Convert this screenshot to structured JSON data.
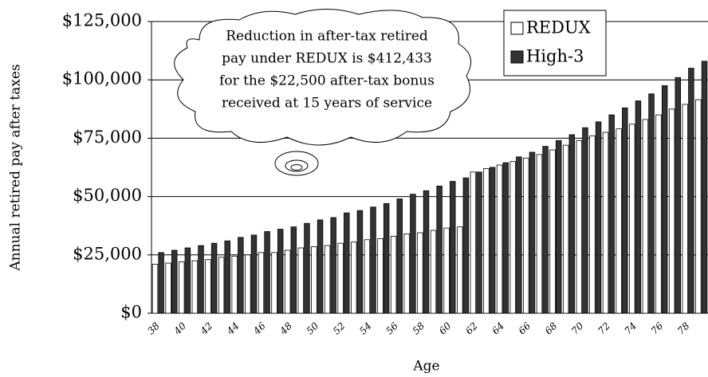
{
  "chart_data": {
    "type": "bar",
    "y_label": "Annual retired pay after taxes",
    "x_label": "Age",
    "annotation": [
      "Reduction in after-tax retired",
      "pay under REDUX is $412,433",
      "for the $22,500 after-tax bonus",
      "received at 15 years of service"
    ],
    "categories": [
      "38",
      null,
      "40",
      null,
      "42",
      null,
      "44",
      null,
      "46",
      null,
      "48",
      null,
      "50",
      null,
      "52",
      null,
      "54",
      null,
      "56",
      null,
      "58",
      null,
      "60",
      null,
      "62",
      null,
      "64",
      null,
      "66",
      null,
      "68",
      null,
      "70",
      null,
      "72",
      null,
      "74",
      null,
      "76",
      null,
      "78",
      null
    ],
    "series": [
      {
        "name": "REDUX",
        "color": "#ffffff",
        "values": [
          21000,
          21500,
          22000,
          22500,
          23000,
          24000,
          24500,
          25000,
          26000,
          26000,
          27000,
          28000,
          28500,
          29000,
          30000,
          30500,
          31500,
          32000,
          33000,
          34000,
          34500,
          35500,
          36500,
          37000,
          60500,
          62000,
          63500,
          65000,
          66500,
          68000,
          70000,
          72000,
          74000,
          76000,
          77500,
          79000,
          81000,
          83000,
          85000,
          87500,
          89500,
          91500
        ]
      },
      {
        "name": "High-3",
        "color": "#333333",
        "values": [
          26000,
          27000,
          28000,
          29000,
          30000,
          31000,
          32500,
          33500,
          35000,
          36000,
          37000,
          38500,
          40000,
          41000,
          43000,
          44000,
          45500,
          47000,
          49000,
          51000,
          52500,
          54500,
          56500,
          58000,
          60500,
          62500,
          64500,
          67000,
          69000,
          71500,
          74000,
          76500,
          79500,
          82000,
          85000,
          88000,
          91000,
          94000,
          97500,
          101000,
          105000,
          108000
        ]
      }
    ],
    "ylim": [
      0,
      125000
    ],
    "yticks": [
      {
        "value": 0,
        "label": "$0"
      },
      {
        "value": 25000,
        "label": "$25,000"
      },
      {
        "value": 50000,
        "label": "$50,000"
      },
      {
        "value": 75000,
        "label": "$75,000"
      },
      {
        "value": 100000,
        "label": "$100,000"
      },
      {
        "value": 125000,
        "label": "$125,000"
      }
    ],
    "grid": true
  }
}
